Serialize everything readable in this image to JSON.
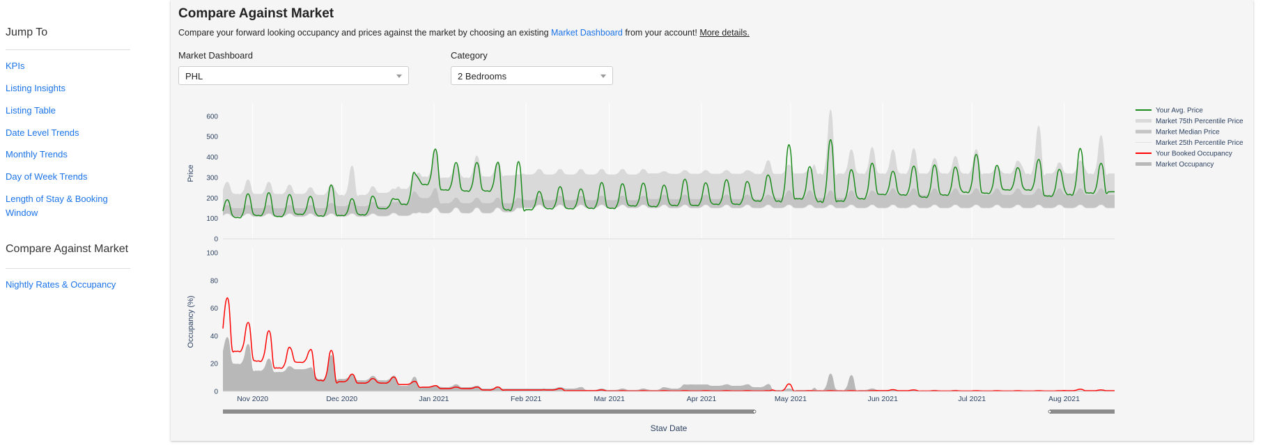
{
  "sidebar": {
    "heading": "Jump To",
    "links": [
      "KPIs",
      "Listing Insights",
      "Listing Table",
      "Date Level Trends",
      "Monthly Trends",
      "Day of Week Trends",
      "Length of Stay & Booking Window"
    ],
    "section_heading": "Compare Against Market",
    "section_links": [
      "Nightly Rates & Occupancy"
    ]
  },
  "main": {
    "title": "Compare Against Market",
    "subtitle_pre": "Compare your forward looking occupancy and prices against the market by choosing an existing ",
    "subtitle_link": "Market Dashboard",
    "subtitle_post": " from your account! ",
    "more_details": "More details.",
    "market_label": "Market Dashboard",
    "market_value": "PHL",
    "category_label": "Category",
    "category_value": "2 Bedrooms"
  },
  "chart_data": {
    "type": "line",
    "xlabel": "Stav Date",
    "x_start": "2020-10-22",
    "x_end": "2021-08-18",
    "x_ticks": [
      "Nov 2020",
      "Dec 2020",
      "Jan 2021",
      "Feb 2021",
      "Mar 2021",
      "Apr 2021",
      "May 2021",
      "Jun 2021",
      "Jul 2021",
      "Aug 2021"
    ],
    "x_tick_dates": [
      "2020-11-01",
      "2020-12-01",
      "2021-01-01",
      "2021-02-01",
      "2021-03-01",
      "2021-04-01",
      "2021-05-01",
      "2021-06-01",
      "2021-07-01",
      "2021-08-01"
    ],
    "weekly_note": "values per week (Sun-Sat) as [weekday, weekend-peak]",
    "price_panel": {
      "ylabel": "Price",
      "ylim": [
        0,
        640
      ],
      "yticks": [
        "0",
        "100",
        "200",
        "300",
        "400",
        "500",
        "600"
      ],
      "your_avg_price": [
        [
          115,
          186
        ],
        [
          105,
          213
        ],
        [
          115,
          218
        ],
        [
          110,
          210
        ],
        [
          121,
          202
        ],
        [
          113,
          253
        ],
        [
          115,
          191
        ],
        [
          118,
          204
        ],
        [
          148,
          195
        ],
        [
          170,
          319
        ],
        [
          267,
          426
        ],
        [
          240,
          364
        ],
        [
          235,
          364
        ],
        [
          235,
          361
        ],
        [
          143,
          361
        ],
        [
          143,
          226
        ],
        [
          148,
          248
        ],
        [
          148,
          238
        ],
        [
          150,
          267
        ],
        [
          150,
          262
        ],
        [
          162,
          265
        ],
        [
          159,
          256
        ],
        [
          164,
          283
        ],
        [
          164,
          267
        ],
        [
          170,
          281
        ],
        [
          170,
          274
        ],
        [
          186,
          305
        ],
        [
          186,
          442
        ],
        [
          197,
          343
        ],
        [
          184,
          464
        ],
        [
          186,
          329
        ],
        [
          197,
          359
        ],
        [
          218,
          323
        ],
        [
          216,
          346
        ],
        [
          205,
          351
        ],
        [
          215,
          343
        ],
        [
          229,
          400
        ],
        [
          224,
          351
        ],
        [
          240,
          341
        ],
        [
          240,
          377
        ],
        [
          210,
          332
        ],
        [
          218,
          427
        ],
        [
          225,
          359
        ],
        [
          230,
          235
        ]
      ],
      "market_p75": [
        [
          225,
          275
        ],
        [
          220,
          285
        ],
        [
          220,
          275
        ],
        [
          220,
          262
        ],
        [
          220,
          250
        ],
        [
          215,
          265
        ],
        [
          215,
          348
        ],
        [
          215,
          255
        ],
        [
          225,
          245
        ],
        [
          245,
          320
        ],
        [
          305,
          430
        ],
        [
          300,
          360
        ],
        [
          300,
          400
        ],
        [
          305,
          370
        ],
        [
          310,
          315
        ],
        [
          315,
          340
        ],
        [
          315,
          340
        ],
        [
          315,
          340
        ],
        [
          315,
          340
        ],
        [
          315,
          340
        ],
        [
          315,
          340
        ],
        [
          320,
          330
        ],
        [
          318,
          335
        ],
        [
          318,
          335
        ],
        [
          318,
          335
        ],
        [
          318,
          335
        ],
        [
          318,
          380
        ],
        [
          318,
          360
        ],
        [
          320,
          340
        ],
        [
          320,
          610
        ],
        [
          320,
          430
        ],
        [
          320,
          440
        ],
        [
          320,
          430
        ],
        [
          320,
          435
        ],
        [
          320,
          390
        ],
        [
          320,
          400
        ],
        [
          320,
          430
        ],
        [
          320,
          350
        ],
        [
          320,
          380
        ],
        [
          320,
          537
        ],
        [
          320,
          370
        ],
        [
          320,
          380
        ],
        [
          320,
          494
        ],
        [
          320,
          365
        ]
      ],
      "market_median": [
        [
          150,
          165
        ],
        [
          150,
          165
        ],
        [
          150,
          165
        ],
        [
          150,
          165
        ],
        [
          150,
          165
        ],
        [
          150,
          175
        ],
        [
          160,
          180
        ],
        [
          160,
          180
        ],
        [
          160,
          180
        ],
        [
          175,
          230
        ],
        [
          200,
          245
        ],
        [
          175,
          200
        ],
        [
          175,
          200
        ],
        [
          175,
          200
        ],
        [
          175,
          200
        ],
        [
          190,
          210
        ],
        [
          190,
          210
        ],
        [
          190,
          210
        ],
        [
          190,
          210
        ],
        [
          190,
          210
        ],
        [
          190,
          210
        ],
        [
          195,
          215
        ],
        [
          195,
          215
        ],
        [
          195,
          215
        ],
        [
          195,
          215
        ],
        [
          195,
          215
        ],
        [
          195,
          215
        ],
        [
          200,
          235
        ],
        [
          200,
          235
        ],
        [
          200,
          235
        ],
        [
          200,
          235
        ],
        [
          200,
          235
        ],
        [
          215,
          245
        ],
        [
          215,
          245
        ],
        [
          215,
          245
        ],
        [
          215,
          245
        ],
        [
          215,
          245
        ],
        [
          215,
          245
        ],
        [
          215,
          245
        ],
        [
          215,
          245
        ],
        [
          215,
          245
        ],
        [
          215,
          245
        ],
        [
          215,
          245
        ],
        [
          215,
          245
        ]
      ],
      "market_p25": [
        [
          108,
          122
        ],
        [
          108,
          122
        ],
        [
          108,
          122
        ],
        [
          108,
          122
        ],
        [
          108,
          122
        ],
        [
          108,
          122
        ],
        [
          108,
          122
        ],
        [
          108,
          122
        ],
        [
          110,
          125
        ],
        [
          112,
          125
        ],
        [
          125,
          150
        ],
        [
          125,
          150
        ],
        [
          125,
          150
        ],
        [
          125,
          150
        ],
        [
          130,
          150
        ],
        [
          150,
          165
        ],
        [
          150,
          165
        ],
        [
          150,
          165
        ],
        [
          150,
          165
        ],
        [
          150,
          165
        ],
        [
          150,
          165
        ],
        [
          150,
          165
        ],
        [
          150,
          165
        ],
        [
          150,
          165
        ],
        [
          150,
          165
        ],
        [
          150,
          165
        ],
        [
          150,
          165
        ],
        [
          150,
          165
        ],
        [
          150,
          165
        ],
        [
          150,
          165
        ],
        [
          150,
          165
        ],
        [
          150,
          165
        ],
        [
          150,
          165
        ],
        [
          150,
          165
        ],
        [
          150,
          165
        ],
        [
          150,
          165
        ],
        [
          150,
          165
        ],
        [
          150,
          165
        ],
        [
          150,
          165
        ],
        [
          150,
          165
        ],
        [
          150,
          165
        ],
        [
          150,
          165
        ],
        [
          150,
          165
        ],
        [
          150,
          165
        ]
      ]
    },
    "occupancy_panel": {
      "ylabel": "Occupancy (%)",
      "ylim": [
        0,
        100
      ],
      "yticks": [
        "0",
        "20",
        "40",
        "60",
        "80",
        "100"
      ],
      "your_booked_occupancy": [
        [
          37,
          65
        ],
        [
          29,
          48
        ],
        [
          22,
          42
        ],
        [
          17,
          31
        ],
        [
          21,
          29
        ],
        [
          8,
          28
        ],
        [
          7,
          12
        ],
        [
          6,
          9
        ],
        [
          6,
          10
        ],
        [
          5,
          7
        ],
        [
          3,
          4
        ],
        [
          2,
          3
        ],
        [
          2,
          3
        ],
        [
          1,
          3
        ],
        [
          1,
          1
        ],
        [
          1,
          1
        ],
        [
          1,
          2
        ],
        [
          0.5,
          0.5
        ],
        [
          0.5,
          1
        ],
        [
          0.3,
          0.5
        ],
        [
          0.3,
          0.5
        ],
        [
          0.3,
          0.5
        ],
        [
          0.3,
          0.5
        ],
        [
          0.3,
          0.5
        ],
        [
          0.3,
          0.5
        ],
        [
          0.3,
          0.5
        ],
        [
          0.3,
          0.5
        ],
        [
          0.3,
          5
        ],
        [
          0.3,
          0.5
        ],
        [
          0.3,
          0.5
        ],
        [
          0.3,
          0.5
        ],
        [
          0.3,
          0.5
        ],
        [
          0.5,
          1.2
        ],
        [
          0.5,
          1
        ],
        [
          0.3,
          0.5
        ],
        [
          0.3,
          0.5
        ],
        [
          0.3,
          0.5
        ],
        [
          0.3,
          0.5
        ],
        [
          0.3,
          0.5
        ],
        [
          0.3,
          0.5
        ],
        [
          0.3,
          0.5
        ],
        [
          0.5,
          1.5
        ],
        [
          0.5,
          1
        ],
        [
          0.5,
          1
        ]
      ],
      "market_occupancy": [
        [
          25,
          38
        ],
        [
          20,
          33
        ],
        [
          15,
          23
        ],
        [
          14,
          18
        ],
        [
          16,
          17
        ],
        [
          9,
          25
        ],
        [
          9,
          12
        ],
        [
          8,
          11
        ],
        [
          8,
          11
        ],
        [
          4,
          10
        ],
        [
          3,
          4
        ],
        [
          3,
          5
        ],
        [
          3,
          4
        ],
        [
          2,
          3
        ],
        [
          2,
          2
        ],
        [
          2,
          2
        ],
        [
          2,
          3
        ],
        [
          2,
          3
        ],
        [
          1,
          2
        ],
        [
          1,
          2
        ],
        [
          1,
          2
        ],
        [
          1,
          3
        ],
        [
          2,
          5
        ],
        [
          5,
          5
        ],
        [
          4,
          5
        ],
        [
          4,
          5
        ],
        [
          3,
          5
        ],
        [
          1,
          2
        ],
        [
          1,
          1
        ],
        [
          1,
          12
        ],
        [
          1,
          11
        ],
        [
          1,
          2
        ],
        [
          1,
          1
        ],
        [
          0.5,
          1
        ],
        [
          0.5,
          1
        ],
        [
          0.5,
          1
        ],
        [
          0.3,
          0.6
        ],
        [
          0.3,
          0.6
        ],
        [
          0.3,
          0.6
        ],
        [
          0.3,
          0.6
        ],
        [
          0.3,
          0.6
        ],
        [
          0.3,
          0.6
        ],
        [
          0.3,
          0.6
        ],
        [
          0.3,
          0.6
        ]
      ]
    },
    "legend": {
      "placement": "right",
      "items": [
        "Your Avg. Price",
        "Market 75th Percentile Price",
        "Market Median Price",
        "Market 25th Percentile Price",
        "Your Booked Occupancy",
        "Market Occupancy"
      ]
    },
    "colors": {
      "your_price": "#1a8a1a",
      "p75": "#d9d9d9",
      "median": "#c4c4c4",
      "p25": "#e6e6e6",
      "your_occ": "#ff0000",
      "market_occ": "#b8b8b8"
    }
  }
}
